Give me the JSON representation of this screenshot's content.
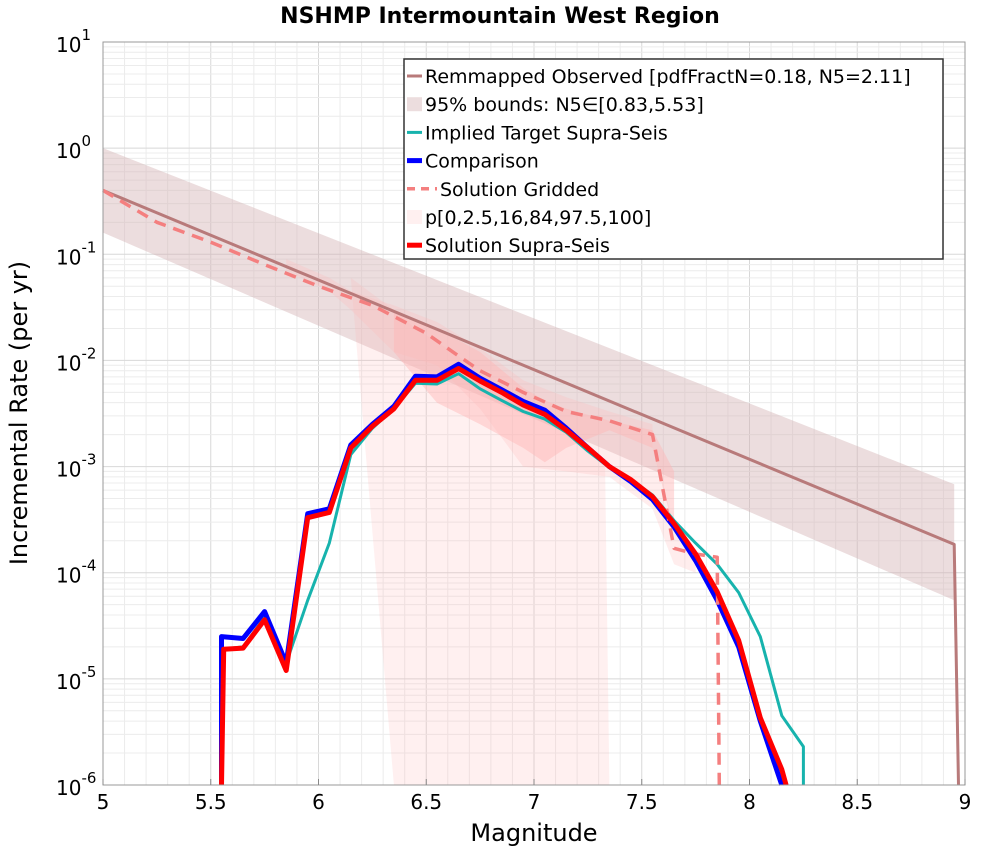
{
  "chart_data": {
    "type": "line",
    "title": "NSHMP Intermountain West Region",
    "xlabel": "Magnitude",
    "ylabel": "Incremental Rate (per yr)",
    "xlim": [
      5,
      9
    ],
    "ylim": [
      1e-06,
      10
    ],
    "yscale": "log",
    "grid": true,
    "legend_position": "top-right",
    "x_ticks": [
      "5",
      "5.5",
      "6",
      "6.5",
      "7",
      "7.5",
      "8",
      "8.5",
      "9"
    ],
    "y_ticks": [
      {
        "base": "10",
        "exp": "-6",
        "value": 1e-06
      },
      {
        "base": "10",
        "exp": "-5",
        "value": 1e-05
      },
      {
        "base": "10",
        "exp": "-4",
        "value": 0.0001
      },
      {
        "base": "10",
        "exp": "-3",
        "value": 0.001
      },
      {
        "base": "10",
        "exp": "-2",
        "value": 0.01
      },
      {
        "base": "10",
        "exp": "-1",
        "value": 0.1
      },
      {
        "base": "10",
        "exp": "0",
        "value": 1
      },
      {
        "base": "10",
        "exp": "1",
        "value": 10
      }
    ],
    "bands": [
      {
        "name": "95% bounds: N5∈[0.83,5.53]",
        "color": "#d5b3b6",
        "opacity": 0.45,
        "x": [
          5.0,
          8.95,
          8.95,
          5.0
        ],
        "y": [
          1.0,
          0.00068,
          5.5e-05,
          0.16
        ],
        "legend": true
      },
      {
        "name": "p[0,2.5,16,84,97.5,100]",
        "color": "#ffb6b6",
        "opacity": 0.2,
        "x": [
          6.15,
          6.35,
          6.45,
          6.55,
          6.65,
          6.75,
          6.85,
          6.95,
          7.05,
          7.15,
          7.25,
          7.33,
          7.35,
          7.15,
          6.75,
          6.35
        ],
        "y": [
          0.06,
          0.03,
          0.02,
          0.015,
          0.011,
          0.007,
          0.005,
          0.004,
          0.003,
          0.0025,
          0.0016,
          0.001,
          1e-06,
          1e-06,
          1e-06,
          1e-06
        ],
        "legend": true
      },
      {
        "name": "",
        "color": "#ffb6b6",
        "opacity": 0.25,
        "x": [
          5.85,
          6.05,
          6.15,
          6.35,
          6.55,
          6.75,
          6.95,
          7.15,
          7.35,
          7.55,
          7.55,
          7.65,
          7.75,
          7.75,
          7.65,
          7.55,
          7.35,
          7.15,
          6.95,
          6.75,
          6.55,
          6.35,
          6.15,
          6.05,
          5.85
        ],
        "y": [
          0.09,
          0.06,
          0.045,
          0.033,
          0.023,
          0.013,
          0.0065,
          0.0045,
          0.0033,
          0.0025,
          0.0015,
          0.00028,
          0.00016,
          0.0001,
          0.00012,
          0.0004,
          0.0008,
          0.0009,
          0.001,
          0.0035,
          0.009,
          0.012,
          0.03,
          0.045,
          0.07
        ],
        "legend": false
      },
      {
        "name": "",
        "color": "#ffb6b6",
        "opacity": 0.45,
        "x": [
          6.35,
          6.55,
          6.75,
          6.95,
          7.05,
          7.15,
          7.35,
          7.55,
          7.65,
          7.65,
          7.55,
          7.35,
          7.15,
          7.05,
          6.95,
          6.75,
          6.55,
          6.35
        ],
        "y": [
          0.03,
          0.02,
          0.012,
          0.0055,
          0.0042,
          0.0035,
          0.0027,
          0.0022,
          0.0009,
          0.00025,
          0.0015,
          0.0022,
          0.0015,
          0.0011,
          0.0015,
          0.0025,
          0.004,
          0.012
        ],
        "legend": false
      }
    ],
    "series": [
      {
        "name": "Remmapped Observed [pdfFractN=0.18, N5=2.11]",
        "color": "#b87a7a",
        "width": 3,
        "dash": "",
        "x": [
          5.0,
          8.95,
          8.97
        ],
        "y": [
          0.4,
          0.000185,
          1e-06
        ]
      },
      {
        "name": "Implied Target Supra-Seis",
        "color": "#17b3ad",
        "width": 3,
        "dash": "",
        "x": [
          5.55,
          5.55,
          5.65,
          5.75,
          5.85,
          5.95,
          6.05,
          6.15,
          6.25,
          6.35,
          6.45,
          6.55,
          6.65,
          6.75,
          6.85,
          6.95,
          7.05,
          7.15,
          7.25,
          7.35,
          7.45,
          7.55,
          7.65,
          7.75,
          7.85,
          7.95,
          8.05,
          8.15,
          8.25,
          8.25
        ],
        "y": [
          1e-06,
          1.9e-05,
          2e-05,
          3.8e-05,
          1.4e-05,
          5.5e-05,
          0.00019,
          0.0013,
          0.0023,
          0.0035,
          0.0061,
          0.006,
          0.0075,
          0.0054,
          0.0042,
          0.0033,
          0.0028,
          0.0021,
          0.0014,
          0.00098,
          0.00075,
          0.00054,
          0.00031,
          0.00019,
          0.00012,
          6.5e-05,
          2.5e-05,
          4.5e-06,
          2.3e-06,
          1e-06
        ]
      },
      {
        "name": "Comparison",
        "color": "#0000ff",
        "width": 5,
        "dash": "",
        "x": [
          5.55,
          5.55,
          5.65,
          5.75,
          5.85,
          5.95,
          6.05,
          6.15,
          6.25,
          6.35,
          6.45,
          6.55,
          6.65,
          6.75,
          6.85,
          6.95,
          7.05,
          7.15,
          7.25,
          7.35,
          7.45,
          7.55,
          7.65,
          7.75,
          7.85,
          7.95,
          8.05,
          8.15
        ],
        "y": [
          1e-06,
          2.5e-05,
          2.4e-05,
          4.3e-05,
          1.4e-05,
          0.00036,
          0.0004,
          0.0016,
          0.0025,
          0.0037,
          0.0071,
          0.007,
          0.0092,
          0.0068,
          0.0053,
          0.0041,
          0.0034,
          0.0023,
          0.0015,
          0.001,
          0.00072,
          0.00049,
          0.00027,
          0.00013,
          5.5e-05,
          2e-05,
          4e-06,
          1e-06
        ]
      },
      {
        "name": "Solution Gridded",
        "color": "#f47f7f",
        "width": 3.5,
        "dash": "12,8",
        "x": [
          5.0,
          5.25,
          5.5,
          5.75,
          6.0,
          6.25,
          6.35,
          6.5,
          6.65,
          6.75,
          6.95,
          7.15,
          7.35,
          7.55,
          7.65,
          7.75,
          7.85,
          7.86
        ],
        "y": [
          0.4,
          0.2,
          0.13,
          0.08,
          0.05,
          0.033,
          0.026,
          0.018,
          0.011,
          0.008,
          0.005,
          0.0033,
          0.0027,
          0.002,
          0.00017,
          0.00015,
          0.00014,
          1e-06
        ]
      },
      {
        "name": "Solution Supra-Seis",
        "color": "#ff0000",
        "width": 5,
        "dash": "",
        "x": [
          5.55,
          5.56,
          5.65,
          5.75,
          5.85,
          5.95,
          6.05,
          6.15,
          6.25,
          6.35,
          6.45,
          6.55,
          6.65,
          6.75,
          6.85,
          6.95,
          7.05,
          7.15,
          7.25,
          7.35,
          7.45,
          7.55,
          7.65,
          7.75,
          7.85,
          7.95,
          8.05,
          8.15,
          8.17
        ],
        "y": [
          1e-06,
          1.9e-05,
          1.95e-05,
          3.6e-05,
          1.2e-05,
          0.00033,
          0.00037,
          0.0015,
          0.0024,
          0.0035,
          0.0065,
          0.0065,
          0.0084,
          0.0064,
          0.005,
          0.0038,
          0.0031,
          0.0022,
          0.0015,
          0.001,
          0.00075,
          0.00052,
          0.00029,
          0.00015,
          6.6e-05,
          2.3e-05,
          4.3e-06,
          1.4e-06,
          1e-06
        ]
      }
    ],
    "legend_order": [
      {
        "kind": "series",
        "index": 0
      },
      {
        "kind": "band",
        "index": 0
      },
      {
        "kind": "series",
        "index": 1
      },
      {
        "kind": "series",
        "index": 2
      },
      {
        "kind": "series",
        "index": 3
      },
      {
        "kind": "band",
        "index": 1
      },
      {
        "kind": "series",
        "index": 4
      }
    ]
  }
}
